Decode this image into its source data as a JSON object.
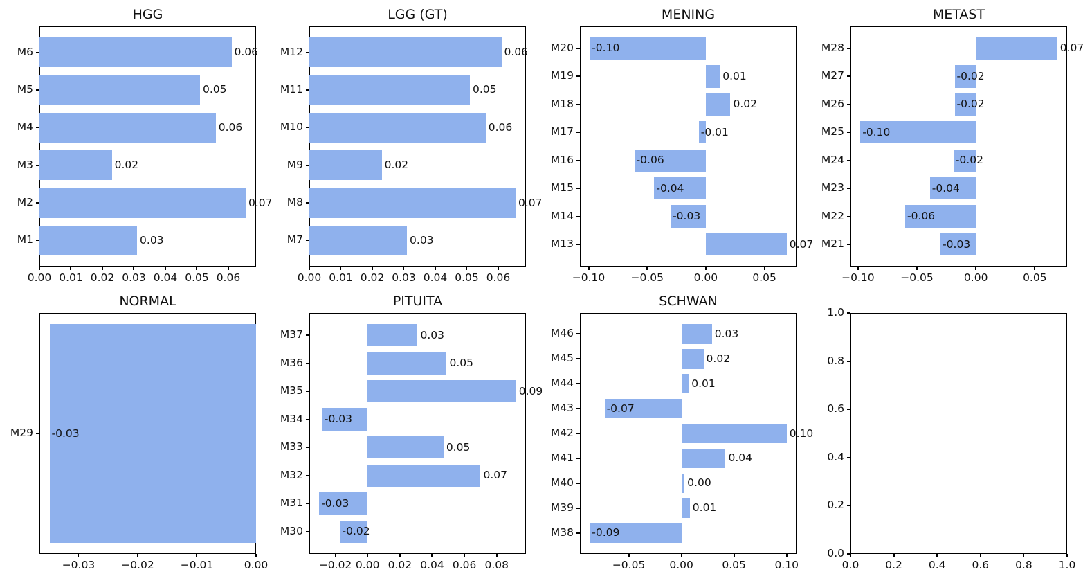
{
  "figure": {
    "background": "#ffffff",
    "bar_color": "#8FB1ED",
    "spine_color": "#000000",
    "text_color": "#111111",
    "grid": "off",
    "legend": "none"
  },
  "chart_data": [
    {
      "type": "bar",
      "orientation": "horizontal",
      "title": "HGG",
      "order": "top-to-bottom",
      "categories": [
        "M6",
        "M5",
        "M4",
        "M3",
        "M2",
        "M1"
      ],
      "values": [
        0.061,
        0.051,
        0.056,
        0.023,
        0.0655,
        0.031
      ],
      "bar_labels": [
        "0.06",
        "0.05",
        "0.06",
        "0.02",
        "0.07",
        "0.03"
      ],
      "xlim": [
        0,
        0.0688
      ],
      "xticks": [
        0,
        0.01,
        0.02,
        0.03,
        0.04,
        0.05,
        0.06
      ],
      "xtick_labels": [
        "0.00",
        "0.01",
        "0.02",
        "0.03",
        "0.04",
        "0.05",
        "0.06"
      ]
    },
    {
      "type": "bar",
      "orientation": "horizontal",
      "title": "LGG (GT)",
      "order": "top-to-bottom",
      "categories": [
        "M12",
        "M11",
        "M10",
        "M9",
        "M8",
        "M7"
      ],
      "values": [
        0.061,
        0.051,
        0.056,
        0.023,
        0.0655,
        0.031
      ],
      "bar_labels": [
        "0.06",
        "0.05",
        "0.06",
        "0.02",
        "0.07",
        "0.03"
      ],
      "xlim": [
        0,
        0.0688
      ],
      "xticks": [
        0,
        0.01,
        0.02,
        0.03,
        0.04,
        0.05,
        0.06
      ],
      "xtick_labels": [
        "0.00",
        "0.01",
        "0.02",
        "0.03",
        "0.04",
        "0.05",
        "0.06"
      ]
    },
    {
      "type": "bar",
      "orientation": "horizontal",
      "title": "MENING",
      "order": "top-to-bottom",
      "categories": [
        "M20",
        "M19",
        "M18",
        "M17",
        "M16",
        "M15",
        "M14",
        "M13"
      ],
      "values": [
        -0.099,
        0.012,
        0.021,
        -0.006,
        -0.061,
        -0.044,
        -0.03,
        0.069
      ],
      "bar_labels": [
        "-0.10",
        "0.01",
        "0.02",
        "-0.01",
        "-0.06",
        "-0.04",
        "-0.03",
        "0.07"
      ],
      "xlim": [
        -0.1074,
        0.0774
      ],
      "xticks": [
        -0.1,
        -0.05,
        0,
        0.05
      ],
      "xtick_labels": [
        "−0.10",
        "−0.05",
        "0.00",
        "0.05"
      ]
    },
    {
      "type": "bar",
      "orientation": "horizontal",
      "title": "METAST",
      "order": "top-to-bottom",
      "categories": [
        "M28",
        "M27",
        "M26",
        "M25",
        "M24",
        "M23",
        "M22",
        "M21"
      ],
      "values": [
        0.069,
        -0.018,
        -0.018,
        -0.098,
        -0.019,
        -0.039,
        -0.06,
        -0.03
      ],
      "bar_labels": [
        "0.07",
        "-0.02",
        "-0.02",
        "-0.10",
        "-0.02",
        "-0.04",
        "-0.06",
        "-0.03"
      ],
      "xlim": [
        -0.1064,
        0.0774
      ],
      "xticks": [
        -0.1,
        -0.05,
        0,
        0.05
      ],
      "xtick_labels": [
        "−0.10",
        "−0.05",
        "0.00",
        "0.05"
      ]
    },
    {
      "type": "bar",
      "orientation": "horizontal",
      "title": "NORMAL",
      "order": "top-to-bottom",
      "categories": [
        "M29"
      ],
      "values": [
        -0.0349
      ],
      "bar_labels": [
        "-0.03"
      ],
      "xlim": [
        -0.0366,
        0
      ],
      "xticks": [
        -0.03,
        -0.02,
        -0.01,
        0
      ],
      "xtick_labels": [
        "−0.03",
        "−0.02",
        "−0.01",
        "0.00"
      ]
    },
    {
      "type": "bar",
      "orientation": "horizontal",
      "title": "PITUITA",
      "order": "top-to-bottom",
      "categories": [
        "M37",
        "M36",
        "M35",
        "M34",
        "M33",
        "M32",
        "M31",
        "M30"
      ],
      "values": [
        0.031,
        0.049,
        0.092,
        -0.028,
        0.047,
        0.07,
        -0.03,
        -0.017
      ],
      "bar_labels": [
        "0.03",
        "0.05",
        "0.09",
        "-0.03",
        "0.05",
        "0.07",
        "-0.03",
        "-0.02"
      ],
      "xlim": [
        -0.0361,
        0.0981
      ],
      "xticks": [
        -0.02,
        0,
        0.02,
        0.04,
        0.06,
        0.08
      ],
      "xtick_labels": [
        "−0.02",
        "0.00",
        "0.02",
        "0.04",
        "0.06",
        "0.08"
      ]
    },
    {
      "type": "bar",
      "orientation": "horizontal",
      "title": "SCHWAN",
      "order": "top-to-bottom",
      "categories": [
        "M46",
        "M45",
        "M44",
        "M43",
        "M42",
        "M41",
        "M40",
        "M39",
        "M38"
      ],
      "values": [
        0.029,
        0.021,
        0.007,
        -0.073,
        0.1,
        0.042,
        0.003,
        0.008,
        -0.087
      ],
      "bar_labels": [
        "0.03",
        "0.02",
        "0.01",
        "-0.07",
        "0.10",
        "0.04",
        "0.00",
        "0.01",
        "-0.09"
      ],
      "xlim": [
        -0.0964,
        0.1094
      ],
      "xticks": [
        -0.05,
        0,
        0.05,
        0.1
      ],
      "xtick_labels": [
        "−0.05",
        "0.00",
        "0.05",
        "0.10"
      ]
    },
    {
      "type": "empty",
      "title": "",
      "xlim": [
        0,
        1
      ],
      "ylim": [
        0,
        1
      ],
      "xticks": [
        0,
        0.2,
        0.4,
        0.6,
        0.8,
        1.0
      ],
      "xtick_labels": [
        "0.0",
        "0.2",
        "0.4",
        "0.6",
        "0.8",
        "1.0"
      ],
      "yticks": [
        0,
        0.2,
        0.4,
        0.6,
        0.8,
        1.0
      ],
      "ytick_labels": [
        "0.0",
        "0.2",
        "0.4",
        "0.6",
        "0.8",
        "1.0"
      ]
    }
  ]
}
